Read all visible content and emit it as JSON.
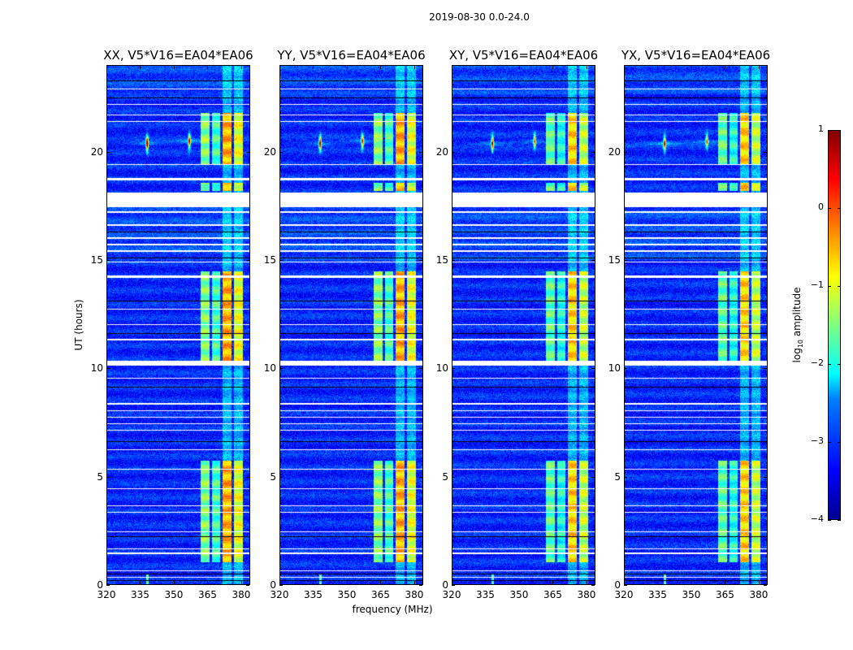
{
  "figure_title": "2019-08-30 0.0-24.0",
  "chart_data": {
    "type": "heatmap",
    "title": "2019-08-30 0.0-24.0",
    "xlabel": "frequency (MHz)",
    "ylabel": "UT (hours)",
    "xlim": [
      320,
      384
    ],
    "ylim": [
      0,
      24
    ],
    "xticks": [
      "320",
      "335",
      "350",
      "365",
      "380"
    ],
    "xtick_values": [
      320,
      335,
      350,
      365,
      380
    ],
    "yticks": [
      "0",
      "5",
      "10",
      "15",
      "20"
    ],
    "ytick_values": [
      0,
      5,
      10,
      15,
      20
    ],
    "panels": [
      {
        "title": "XX, V5*V16=EA04*EA06",
        "rfi_strength": 1.0
      },
      {
        "title": "YY, V5*V16=EA04*EA06",
        "rfi_strength": 0.9
      },
      {
        "title": "XY, V5*V16=EA04*EA06",
        "rfi_strength": 0.85
      },
      {
        "title": "YX, V5*V16=EA04*EA06",
        "rfi_strength": 0.8
      }
    ],
    "colorbar": {
      "label_main": "log",
      "label_sub": "10",
      "label_rest": " amplitude",
      "range": [
        -4,
        1
      ],
      "ticks": [
        "−4",
        "−3",
        "−2",
        "−1",
        "0",
        "1"
      ],
      "tick_values": [
        -4,
        -3,
        -2,
        -1,
        0,
        1
      ],
      "colormap": "jet"
    },
    "background_level": -3.2,
    "bright_channels_mhz": [
      [
        362,
        366,
        -1.5
      ],
      [
        367,
        371,
        -1.8
      ],
      [
        372,
        376,
        -0.5
      ],
      [
        377,
        381,
        -1.0
      ]
    ],
    "bright_time_ranges_hr": [
      [
        1.0,
        5.7
      ],
      [
        10.3,
        14.5
      ],
      [
        18.2,
        18.6
      ],
      [
        19.4,
        21.8
      ]
    ],
    "rfi_spikes": [
      {
        "freq": 338,
        "time": 20.4,
        "level": 0.3
      },
      {
        "freq": 357,
        "time": 20.5,
        "level": -0.5
      }
    ],
    "flagged_ranges_hr": [
      [
        17.47,
        18.15
      ],
      [
        10.12,
        10.35
      ],
      [
        22.9,
        22.95
      ],
      [
        22.2,
        22.25
      ],
      [
        21.7,
        21.75
      ],
      [
        21.4,
        21.45
      ],
      [
        19.4,
        19.45
      ],
      [
        18.7,
        18.8
      ],
      [
        17.2,
        17.25
      ],
      [
        16.6,
        16.65
      ],
      [
        16.0,
        16.05
      ],
      [
        15.7,
        15.75
      ],
      [
        15.4,
        15.45
      ],
      [
        14.9,
        14.95
      ],
      [
        14.2,
        14.3
      ],
      [
        12.7,
        12.75
      ],
      [
        12.0,
        12.05
      ],
      [
        11.3,
        11.35
      ],
      [
        9.5,
        9.55
      ],
      [
        8.3,
        8.4
      ],
      [
        8.0,
        8.05
      ],
      [
        7.7,
        7.75
      ],
      [
        7.4,
        7.45
      ],
      [
        7.1,
        7.15
      ],
      [
        6.2,
        6.25
      ],
      [
        5.3,
        5.35
      ],
      [
        4.4,
        4.45
      ],
      [
        3.6,
        3.65
      ],
      [
        3.3,
        3.35
      ],
      [
        2.4,
        2.45
      ],
      [
        1.6,
        1.65
      ],
      [
        1.4,
        1.45
      ],
      [
        0.6,
        0.65
      ],
      [
        0.3,
        0.35
      ]
    ],
    "zero_ranges_hr": [
      [
        23.3,
        23.33
      ],
      [
        22.5,
        22.53
      ],
      [
        21.05,
        21.08
      ],
      [
        19.7,
        19.73
      ],
      [
        16.3,
        16.33
      ],
      [
        15.1,
        15.13
      ],
      [
        13.1,
        13.13
      ],
      [
        11.6,
        11.63
      ],
      [
        9.1,
        9.13
      ],
      [
        6.6,
        6.63
      ],
      [
        5.1,
        5.13
      ],
      [
        3.9,
        3.93
      ],
      [
        2.2,
        2.23
      ],
      [
        0.45,
        0.48
      ],
      [
        0.15,
        0.18
      ]
    ]
  }
}
